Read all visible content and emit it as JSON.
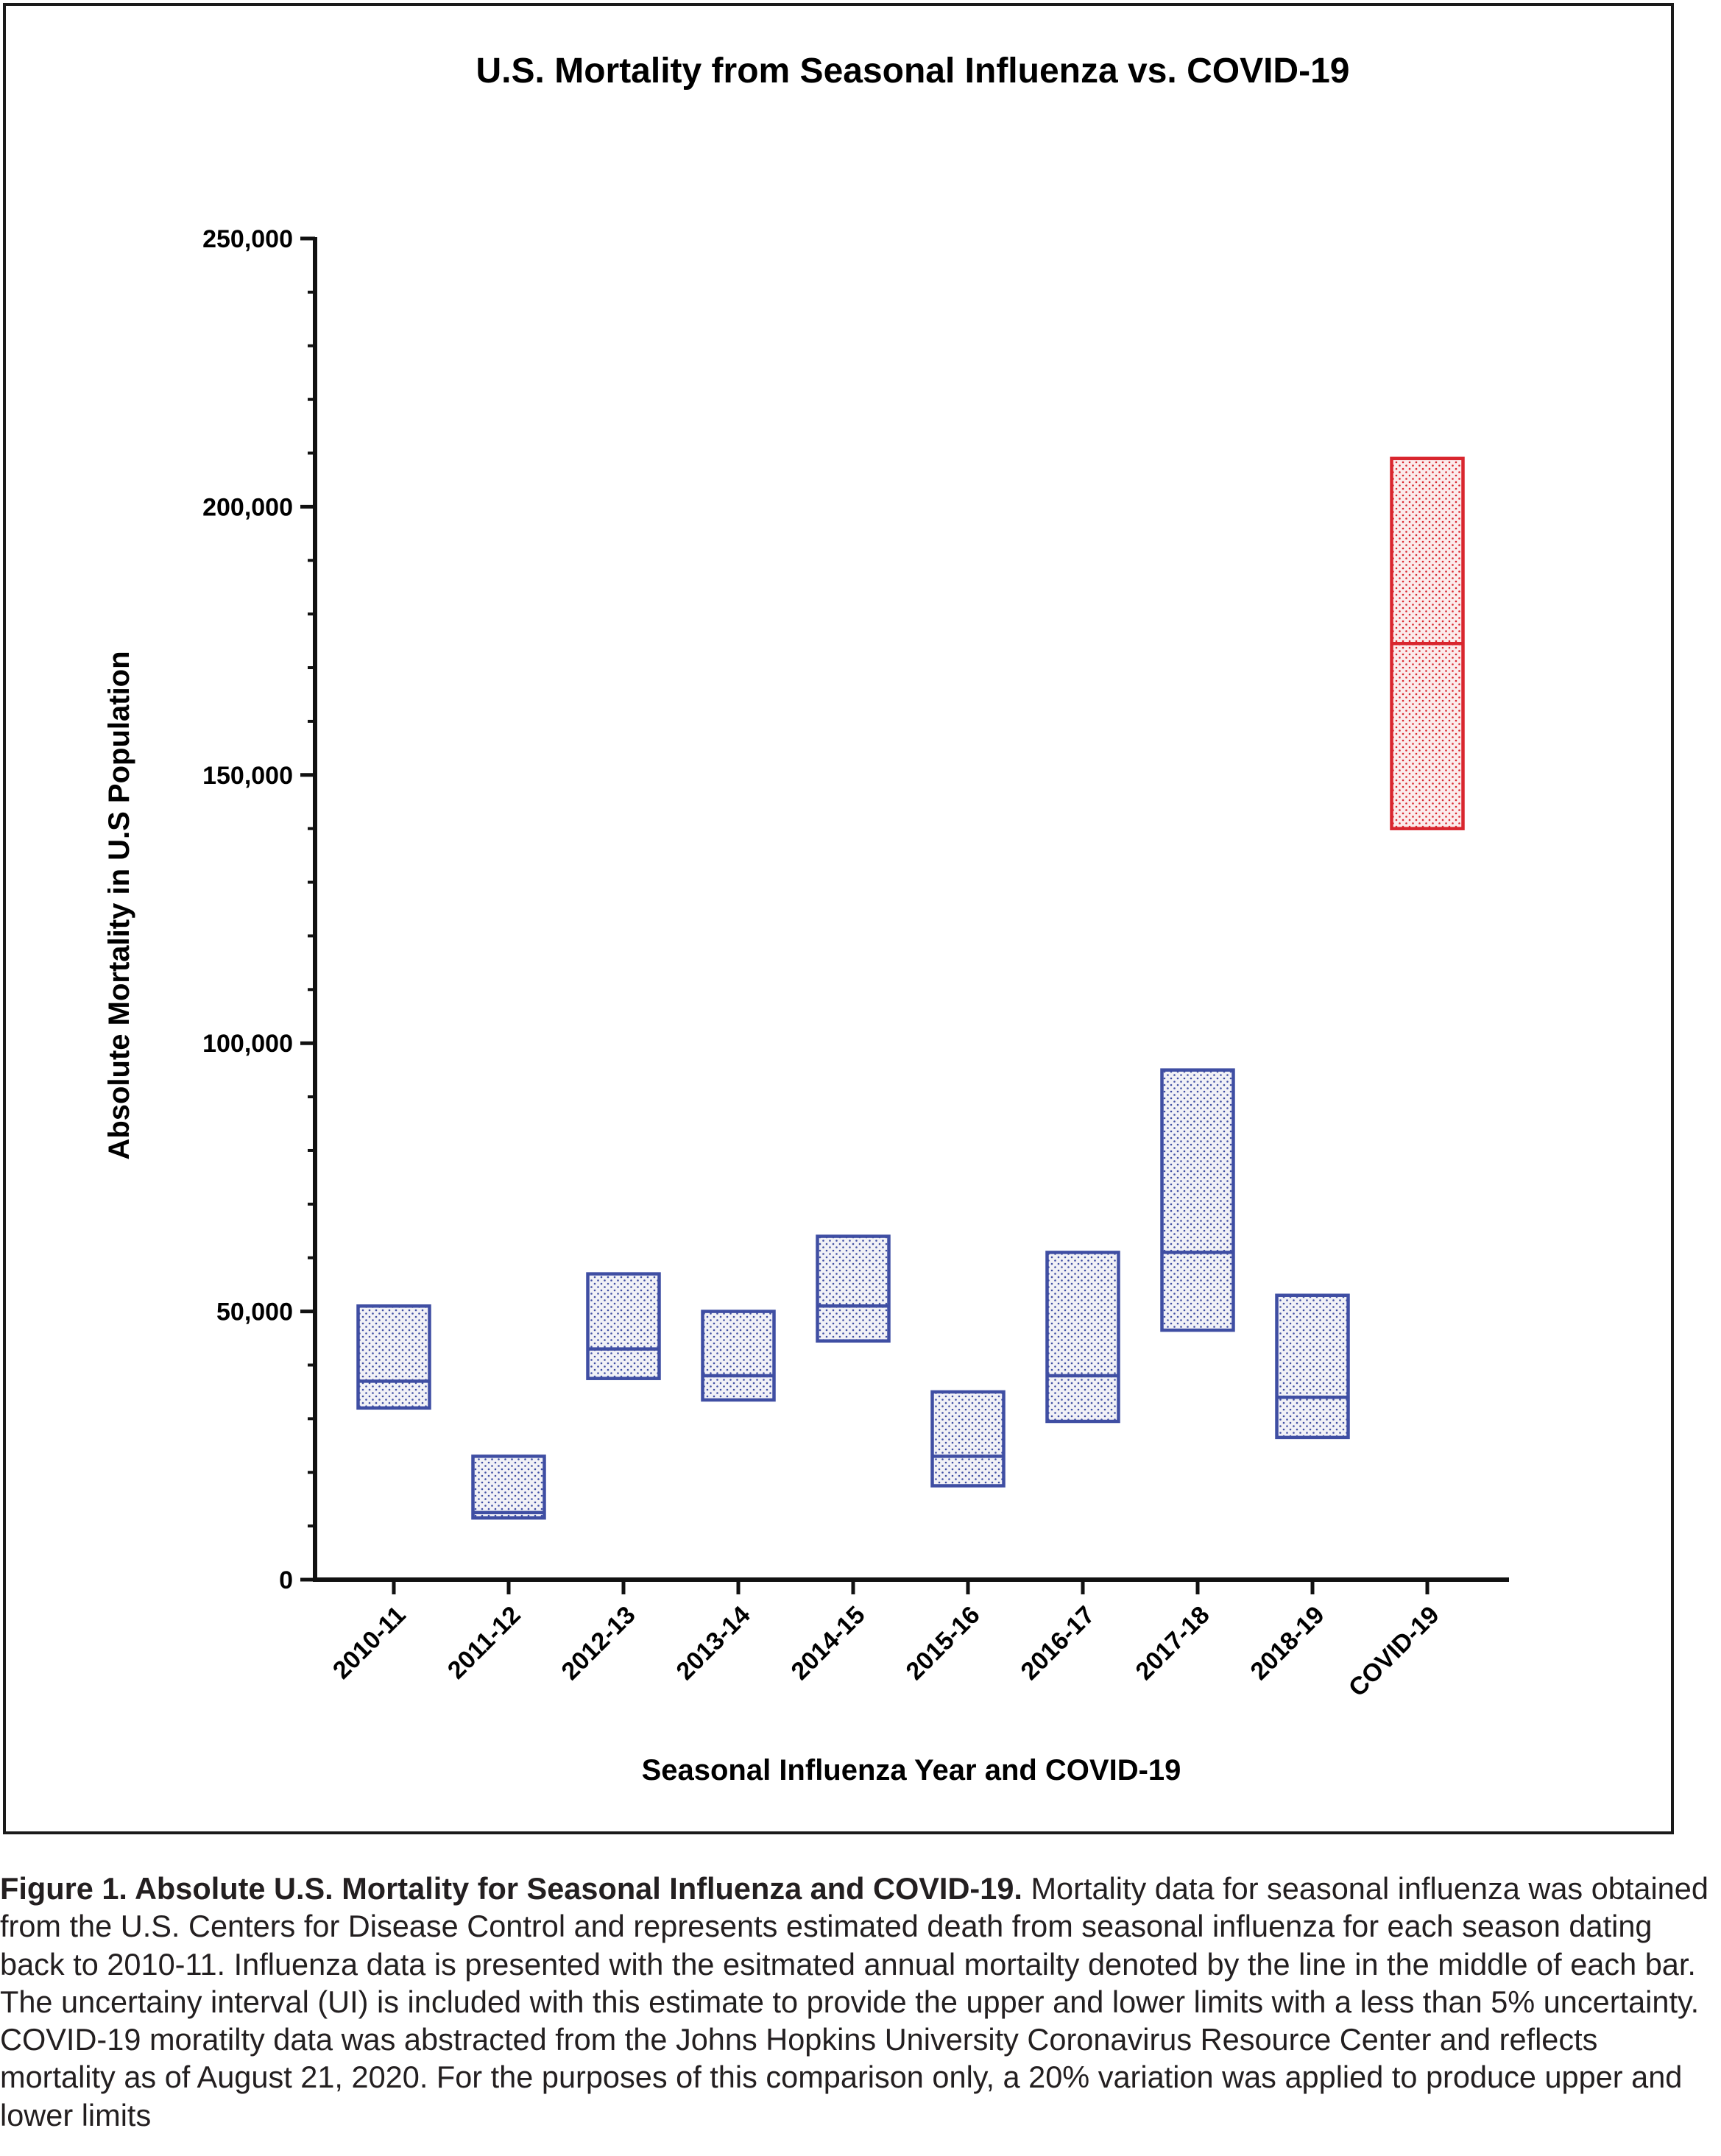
{
  "chart_data": {
    "type": "box",
    "title": "U.S. Mortality from Seasonal Influenza vs. COVID-19",
    "xlabel": "Seasonal  Influenza Year and  COVID-19",
    "ylabel": "Absolute Mortality in  U.S  Population",
    "ylim": [
      0,
      250000
    ],
    "y_ticks": [
      0,
      50000,
      100000,
      150000,
      200000,
      250000
    ],
    "y_tick_labels": [
      "0",
      "50,000",
      "100,000",
      "150,000",
      "200,000",
      "250,000"
    ],
    "grid": false,
    "categories": [
      "2010-11",
      "2011-12",
      "2012-13",
      "2013-14",
      "2014-15",
      "2015-16",
      "2016-17",
      "2017-18",
      "2018-19",
      "COVID-19"
    ],
    "low": [
      32000,
      11500,
      37500,
      33500,
      44500,
      17500,
      29500,
      46500,
      26500,
      140000
    ],
    "estimate": [
      37000,
      12500,
      43000,
      38000,
      51000,
      23000,
      38000,
      61000,
      34000,
      174500
    ],
    "high": [
      51000,
      23000,
      57000,
      50000,
      64000,
      35000,
      61000,
      95000,
      53000,
      209000
    ],
    "colors": {
      "influenza": "#3f4ea3",
      "covid": "#d9262e",
      "influenza_fill": "#f1f1f6",
      "covid_fill": "#fbecec"
    }
  },
  "caption": {
    "title": "Figure 1.  Absolute U.S. Mortality for Seasonal Influenza and COVID-19.",
    "body": "Mortality data for seasonal influenza was obtained from the U.S. Centers for Disease Control and represents estimated death from seasonal influenza for each season dating back to 2010-11.  Influenza data is presented with the esitmated annual mortailty denoted by the line in the middle of each bar.  The uncertainy interval (UI) is included with this estimate to provide the upper and lower limits with a less than 5% uncertainty.  COVID-19 moratilty data was abstracted from the Johns Hopkins University Coronavirus Resource Center and reflects mortality as of August 21, 2020.  For the purposes of this comparison only, a 20% variation was applied to produce upper and lower limits"
  }
}
